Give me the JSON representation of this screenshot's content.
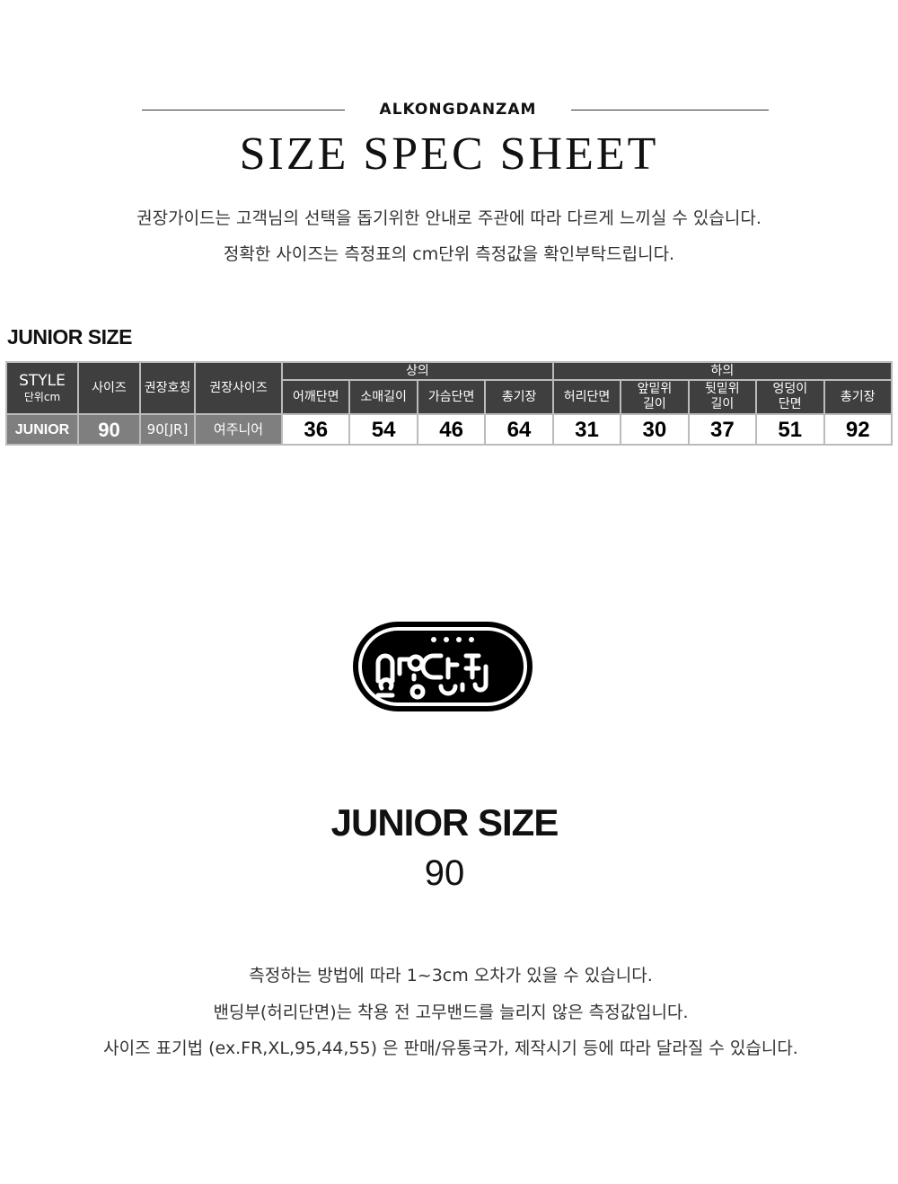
{
  "header": {
    "brand": "ALKONGDANZAM",
    "title": "SIZE SPEC SHEET",
    "desc": [
      "권장가이드는 고객님의 선택을 돕기위한 안내로 주관에 따라 다르게 느끼실 수 있습니다.",
      "정확한 사이즈는 측정표의 cm단위 측정값을 확인부탁드립니다."
    ]
  },
  "section_title": "JUNIOR SIZE",
  "table": {
    "style_label": "STYLE",
    "unit_label": "단위cm",
    "size_label": "사이즈",
    "rec_name_label": "권장호칭",
    "rec_size_label": "권장사이즈",
    "top_group": "상의",
    "bottom_group": "하의",
    "top_cols": [
      "어깨단면",
      "소매길이",
      "가슴단면",
      "총기장"
    ],
    "bottom_cols": [
      [
        "허리단면",
        ""
      ],
      [
        "앞밑위",
        "길이"
      ],
      [
        "뒷밑위",
        "길이"
      ],
      [
        "엉덩이",
        "단면"
      ],
      [
        "총기장",
        ""
      ]
    ],
    "row": {
      "style": "JUNIOR",
      "size": "90",
      "rec_name": "90[JR]",
      "rec_size": "여주니어",
      "values": [
        "36",
        "54",
        "46",
        "64",
        "31",
        "30",
        "37",
        "51",
        "92"
      ]
    }
  },
  "logo": {
    "text": "알콩단잠",
    "color": "#000000"
  },
  "footer": {
    "title": "JUNIOR SIZE",
    "size": "90",
    "notes": [
      "측정하는 방법에 따라 1~3cm 오차가 있을 수 있습니다.",
      "밴딩부(허리단면)는 착용 전 고무밴드를 늘리지 않은 측정값입니다.",
      "사이즈 표기법 (ex.FR,XL,95,44,55) 은 판매/유통국가, 제작시기 등에 따라 달라질 수 있습니다."
    ]
  }
}
